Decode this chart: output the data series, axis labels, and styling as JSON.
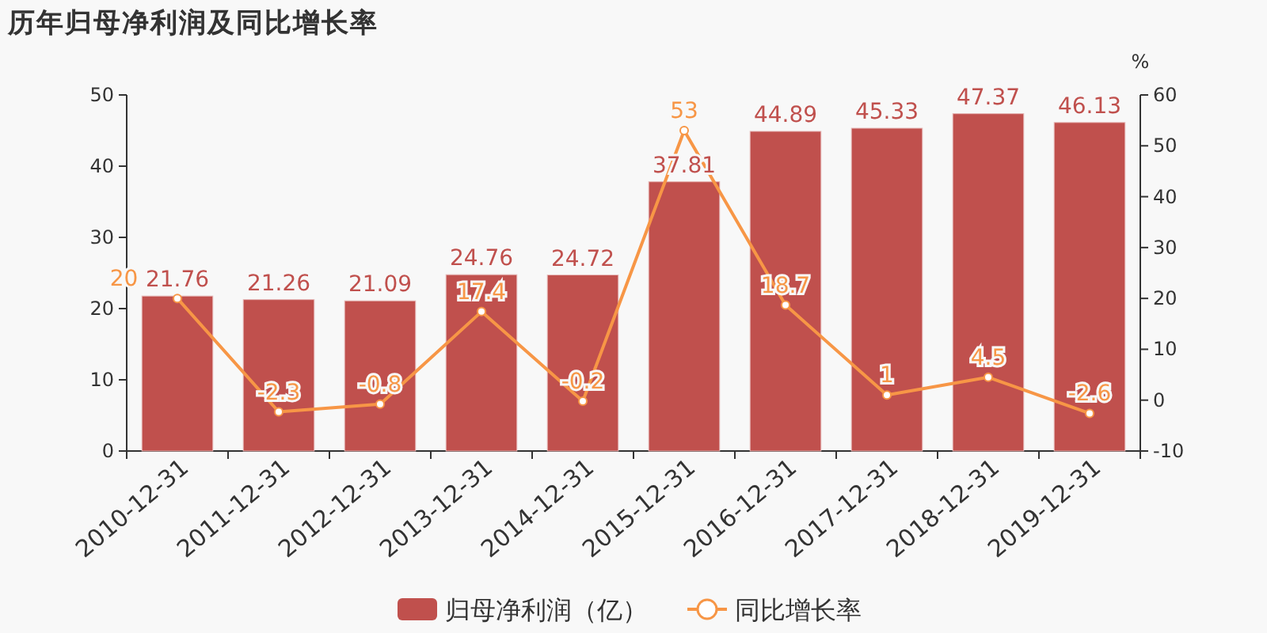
{
  "chart_data": {
    "type": "bar",
    "title": "历年归母净利润及同比增长率",
    "y2label": "%",
    "categories": [
      "2010-12-31",
      "2011-12-31",
      "2012-12-31",
      "2013-12-31",
      "2014-12-31",
      "2015-12-31",
      "2016-12-31",
      "2017-12-31",
      "2018-12-31",
      "2019-12-31"
    ],
    "series": [
      {
        "name": "归母净利润（亿）",
        "color": "#c0504d",
        "values": [
          21.76,
          21.26,
          21.09,
          24.76,
          24.72,
          37.81,
          44.89,
          45.33,
          47.37,
          46.13
        ]
      },
      {
        "name": "同比增长率",
        "type": "line",
        "axis": "y2",
        "color": "#f79646",
        "marker": "circle",
        "values": [
          20,
          -2.3,
          -0.8,
          17.4,
          -0.2,
          53,
          18.7,
          1,
          4.5,
          -2.6
        ]
      }
    ],
    "ylim": [
      0,
      50
    ],
    "yticks": [
      0,
      10,
      20,
      30,
      40,
      50
    ],
    "y2lim": [
      -10,
      60
    ],
    "y2ticks": [
      -10,
      0,
      10,
      20,
      30,
      40,
      50,
      60
    ],
    "data_labels": true,
    "legend": "bottom",
    "grid": false
  }
}
